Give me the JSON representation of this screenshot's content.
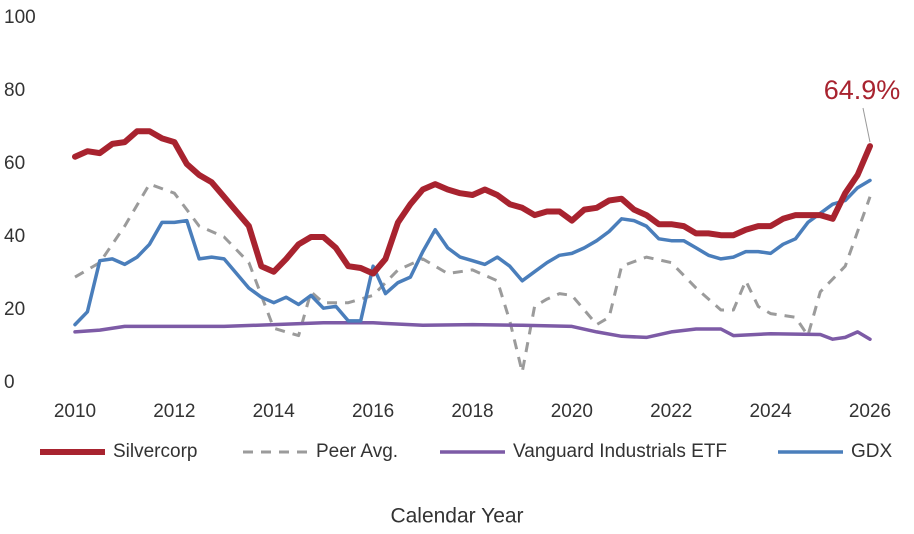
{
  "chart_data": {
    "type": "line",
    "x_label": "Calendar Year",
    "xlim": [
      2010,
      2026
    ],
    "xticks": [
      2010,
      2012,
      2014,
      2016,
      2018,
      2020,
      2022,
      2024,
      2026
    ],
    "ylim": [
      0,
      100
    ],
    "yticks": [
      0,
      20,
      40,
      60,
      80,
      100
    ],
    "grid": false,
    "legend": "bottom",
    "annotation": {
      "text": "64.9%",
      "x": 2026,
      "y": 64.9,
      "color": "#a8232f"
    },
    "series": [
      {
        "name": "Silvercorp",
        "color": "#a8232f",
        "style": "solid",
        "x": [
          2010,
          2010.25,
          2010.5,
          2010.75,
          2011,
          2011.25,
          2011.5,
          2011.75,
          2012,
          2012.25,
          2012.5,
          2012.75,
          2013,
          2013.25,
          2013.5,
          2013.75,
          2014,
          2014.25,
          2014.5,
          2014.75,
          2015,
          2015.25,
          2015.5,
          2015.75,
          2016,
          2016.25,
          2016.5,
          2016.75,
          2017,
          2017.25,
          2017.5,
          2017.75,
          2018,
          2018.25,
          2018.5,
          2018.75,
          2019,
          2019.25,
          2019.5,
          2019.75,
          2020,
          2020.25,
          2020.5,
          2020.75,
          2021,
          2021.25,
          2021.5,
          2021.75,
          2022,
          2022.25,
          2022.5,
          2022.75,
          2023,
          2023.25,
          2023.5,
          2023.75,
          2024,
          2024.25,
          2024.5,
          2024.75,
          2025,
          2025.25,
          2025.5,
          2025.75,
          2026
        ],
        "values": [
          62,
          63.5,
          63,
          65.5,
          66,
          69,
          69,
          67,
          66,
          60,
          57,
          55,
          51,
          47,
          43,
          32,
          30.5,
          34,
          38,
          40,
          40,
          37,
          32,
          31.5,
          30,
          34,
          44,
          49,
          53,
          54.5,
          53,
          52,
          51.5,
          53,
          51.5,
          49,
          48,
          46,
          47,
          47,
          44.5,
          47.5,
          48,
          50,
          50.5,
          47.5,
          46,
          43.5,
          43.5,
          43,
          41,
          41,
          40.5,
          40.5,
          42,
          43,
          43,
          45,
          46,
          46,
          46,
          45,
          52,
          57,
          64.9
        ]
      },
      {
        "name": "Peer Avg.",
        "color": "#9b9b9b",
        "style": "dashed",
        "x": [
          2010,
          2010.5,
          2011,
          2011.5,
          2012,
          2012.5,
          2013,
          2013.5,
          2014,
          2014.5,
          2014.75,
          2015,
          2015.5,
          2016,
          2016.5,
          2017,
          2017.5,
          2018,
          2018.5,
          2018.75,
          2019,
          2019.25,
          2019.5,
          2019.75,
          2020,
          2020.5,
          2020.75,
          2021,
          2021.5,
          2022,
          2022.5,
          2023,
          2023.25,
          2023.5,
          2023.75,
          2024,
          2024.5,
          2024.75,
          2025,
          2025.5,
          2026
        ],
        "values": [
          29,
          33,
          43,
          54.5,
          52,
          43,
          40,
          33,
          15,
          13,
          25,
          22,
          22,
          24,
          31,
          34,
          30,
          31,
          28,
          17,
          3,
          21,
          23,
          24.5,
          24,
          16,
          18,
          32,
          34.5,
          33,
          26,
          20,
          20,
          28,
          21,
          19,
          18,
          13,
          25,
          32,
          51
        ]
      },
      {
        "name": "Vanguard Industrials ETF",
        "color": "#7d5ba6",
        "style": "solid",
        "x": [
          2010,
          2010.5,
          2011,
          2011.5,
          2012,
          2013,
          2014,
          2015,
          2016,
          2017,
          2018,
          2019,
          2020,
          2020.5,
          2021,
          2021.5,
          2022,
          2022.5,
          2023,
          2023.25,
          2024,
          2025,
          2025.25,
          2025.5,
          2025.75,
          2026
        ],
        "values": [
          14,
          14.5,
          15.5,
          15.5,
          15.5,
          15.5,
          16,
          16.5,
          16.5,
          15.8,
          16,
          15.8,
          15.5,
          14,
          12.8,
          12.5,
          14,
          14.8,
          14.8,
          13,
          13.5,
          13.3,
          12,
          12.5,
          14,
          12
        ]
      },
      {
        "name": "GDX",
        "color": "#4a7ebb",
        "style": "solid",
        "x": [
          2010,
          2010.25,
          2010.5,
          2010.75,
          2011,
          2011.25,
          2011.5,
          2011.75,
          2012,
          2012.25,
          2012.5,
          2012.75,
          2013,
          2013.25,
          2013.5,
          2013.75,
          2014,
          2014.25,
          2014.5,
          2014.75,
          2015,
          2015.25,
          2015.5,
          2015.75,
          2016,
          2016.25,
          2016.5,
          2016.75,
          2017,
          2017.25,
          2017.5,
          2017.75,
          2018,
          2018.25,
          2018.5,
          2018.75,
          2019,
          2019.25,
          2019.5,
          2019.75,
          2020,
          2020.25,
          2020.5,
          2020.75,
          2021,
          2021.25,
          2021.5,
          2021.75,
          2022,
          2022.25,
          2022.5,
          2022.75,
          2023,
          2023.25,
          2023.5,
          2023.75,
          2024,
          2024.25,
          2024.5,
          2024.75,
          2025,
          2025.25,
          2025.5,
          2025.75,
          2026
        ],
        "values": [
          16,
          19.5,
          33.5,
          34,
          32.5,
          34.5,
          38,
          44,
          44,
          44.5,
          34,
          34.5,
          34,
          30,
          26,
          23.5,
          22,
          23.5,
          21.5,
          24,
          20.5,
          21,
          17,
          17,
          32,
          24.5,
          27.5,
          29,
          36,
          42,
          37,
          34.5,
          33.5,
          32.5,
          34.5,
          32,
          28,
          30.5,
          33,
          35,
          35.5,
          37,
          39,
          41.5,
          45,
          44.5,
          43,
          39.5,
          39,
          39,
          37,
          35,
          34,
          34.5,
          36,
          36,
          35.5,
          38,
          39.5,
          44,
          46.5,
          49,
          50,
          53.5,
          55.5
        ]
      }
    ]
  }
}
